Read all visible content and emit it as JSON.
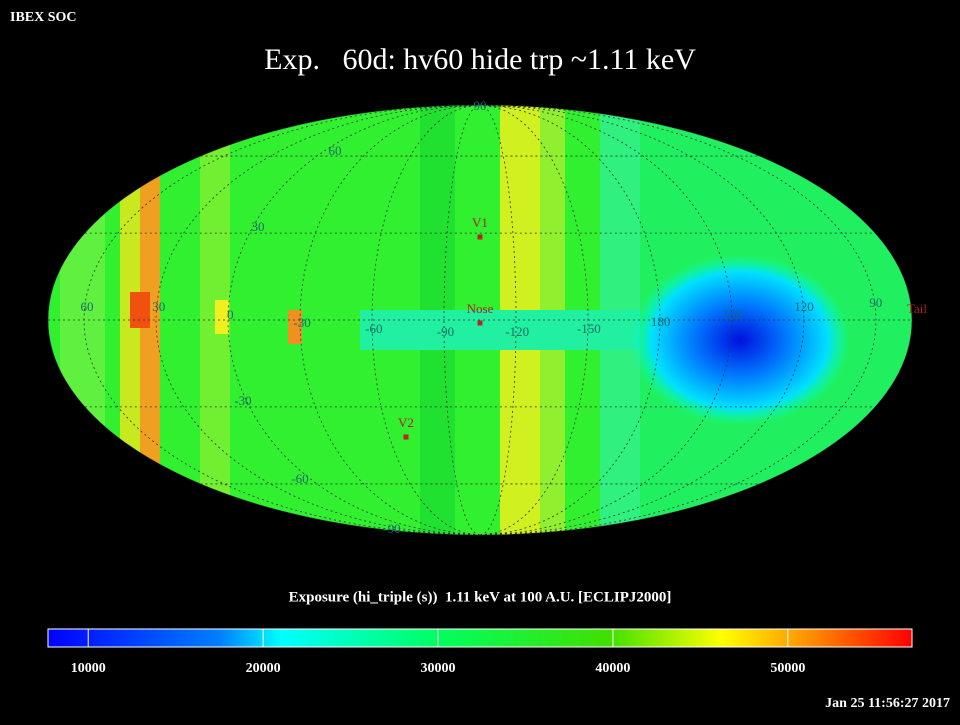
{
  "header": {
    "app": "IBEX SOC",
    "title": "Exp.   60d: hv60 hide trp ~1.11 keV",
    "timestamp": "Jan 25 11:56:27 2017"
  },
  "map": {
    "longitude_labels": [
      "60",
      "30",
      "0",
      "-30",
      "-60",
      "-90",
      "-120",
      "-150",
      "180",
      "150",
      "120",
      "90"
    ],
    "latitude_labels": [
      "90",
      "60",
      "30",
      "-30",
      "-60",
      "-90"
    ],
    "markers": [
      "V1",
      "Nose",
      "V2",
      "Tail"
    ]
  },
  "colorbar": {
    "label": "Exposure (hi_triple (s))  1.11 keV at 100 A.U. [ECLIPJ2000]",
    "lim": [
      7700,
      57100
    ],
    "ticks": [
      10000,
      20000,
      30000,
      40000,
      50000
    ]
  }
}
